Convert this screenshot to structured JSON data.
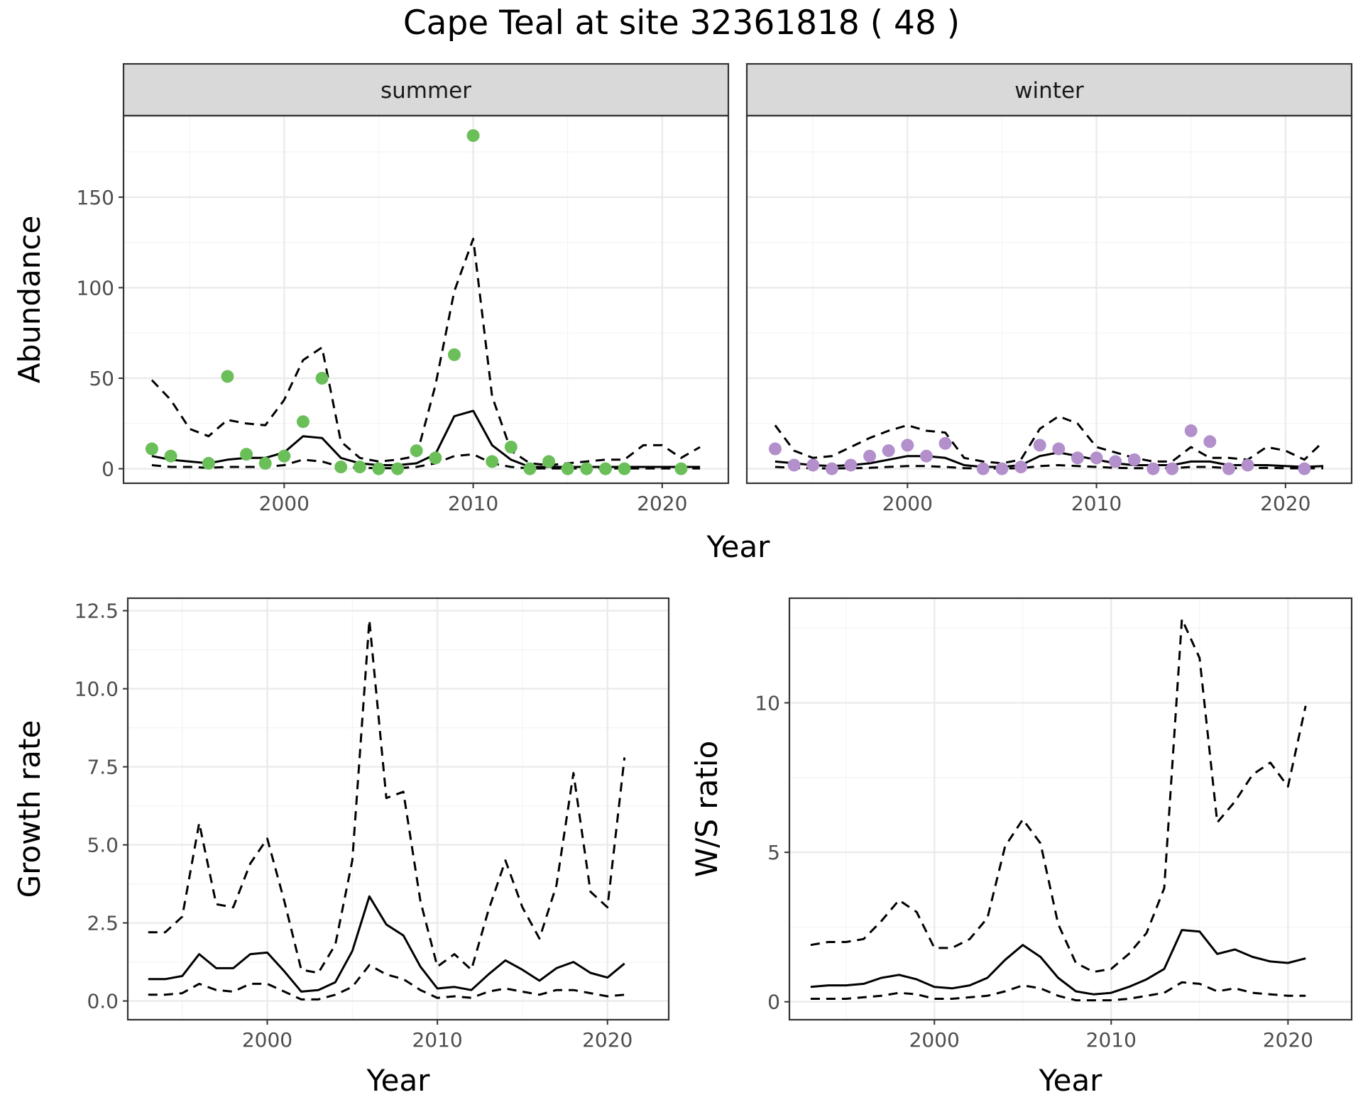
{
  "title": "Cape Teal at site 32361818 ( 48 )",
  "colors": {
    "summer": "#6BBF59",
    "winter": "#B390CC",
    "line": "#000000",
    "grid_major": "#EBEBEB",
    "grid_minor": "#F4F4F4",
    "strip_bg": "#D9D9D9"
  },
  "chart_data": [
    {
      "id": "abundance",
      "type": "line+scatter",
      "facets": [
        "summer",
        "winter"
      ],
      "xlabel": "Year",
      "ylabel": "Abundance",
      "xlim": [
        1991.5,
        2023.5
      ],
      "ylim": [
        -8,
        195
      ],
      "xticks": [
        2000,
        2010,
        2020
      ],
      "yticks": [
        0,
        50,
        100,
        150
      ],
      "panels": [
        {
          "facet": "summer",
          "years": [
            1993,
            1994,
            1995,
            1996,
            1997,
            1998,
            1999,
            2000,
            2001,
            2002,
            2003,
            2004,
            2005,
            2006,
            2007,
            2008,
            2009,
            2010,
            2011,
            2012,
            2013,
            2014,
            2015,
            2016,
            2017,
            2018,
            2019,
            2020,
            2021,
            2022
          ],
          "mean": [
            7,
            5,
            4,
            3,
            5,
            6,
            6,
            9,
            18,
            17,
            6,
            3,
            2,
            2,
            3,
            8,
            29,
            32,
            13,
            5,
            1,
            1,
            1,
            1,
            1,
            1,
            1,
            1,
            1,
            1
          ],
          "upper": [
            49,
            38,
            22,
            18,
            27,
            25,
            24,
            38,
            60,
            67,
            15,
            6,
            4,
            5,
            7,
            46,
            98,
            127,
            40,
            10,
            3,
            2,
            3,
            4,
            5,
            5,
            13,
            13,
            6,
            12
          ],
          "lower": [
            2,
            1,
            1,
            0.5,
            1,
            1,
            1,
            2,
            5,
            4,
            1,
            0.5,
            0.3,
            0.3,
            1,
            3,
            7,
            8,
            3,
            1,
            0.2,
            0.2,
            0.2,
            0.2,
            0.2,
            0.2,
            0.2,
            0.2,
            0.2,
            0.2
          ],
          "obs_years": [
            1993,
            1994,
            1996,
            1997,
            1998,
            1999,
            2000,
            2001,
            2002,
            2003,
            2004,
            2005,
            2006,
            2007,
            2008,
            2009,
            2010,
            2011,
            2012,
            2013,
            2014,
            2015,
            2016,
            2017,
            2018,
            2021
          ],
          "obs_values": [
            11,
            7,
            3,
            51,
            8,
            3,
            7,
            26,
            50,
            1,
            1,
            0,
            0,
            10,
            6,
            63,
            184,
            4,
            12,
            0,
            4,
            0,
            0,
            0,
            0,
            0
          ]
        },
        {
          "facet": "winter",
          "years": [
            1993,
            1994,
            1995,
            1996,
            1997,
            1998,
            1999,
            2000,
            2001,
            2002,
            2003,
            2004,
            2005,
            2006,
            2007,
            2008,
            2009,
            2010,
            2011,
            2012,
            2013,
            2014,
            2015,
            2016,
            2017,
            2018,
            2019,
            2020,
            2021,
            2022
          ],
          "mean": [
            4,
            3,
            2,
            1.5,
            2,
            3,
            5,
            7,
            7,
            6,
            2,
            1,
            1,
            2,
            7,
            9,
            7,
            5,
            3,
            2,
            2,
            2,
            4,
            4,
            2,
            2,
            2,
            1.5,
            1,
            1.5
          ],
          "upper": [
            24,
            10,
            6,
            7,
            12,
            17,
            21,
            24,
            21,
            20,
            6,
            4,
            3,
            5,
            22,
            29,
            25,
            12,
            9,
            6,
            4,
            4,
            12,
            6,
            6,
            5,
            12,
            10,
            5,
            15
          ],
          "lower": [
            1,
            0.5,
            0.3,
            0.2,
            0.3,
            0.5,
            1,
            1.5,
            1.5,
            1,
            0.3,
            0.2,
            0.2,
            0.3,
            1.5,
            2,
            1.5,
            1,
            0.5,
            0.3,
            0.3,
            0.3,
            1,
            1,
            0.3,
            0.3,
            0.5,
            0.3,
            0.2,
            0.3
          ],
          "obs_years": [
            1993,
            1994,
            1995,
            1996,
            1997,
            1998,
            1999,
            2000,
            2001,
            2002,
            2004,
            2005,
            2006,
            2007,
            2008,
            2009,
            2010,
            2011,
            2012,
            2013,
            2014,
            2015,
            2016,
            2017,
            2018,
            2021
          ],
          "obs_values": [
            11,
            2,
            2,
            0,
            2,
            7,
            10,
            13,
            7,
            14,
            0,
            0,
            1,
            13,
            11,
            6,
            6,
            4,
            5,
            0,
            0,
            21,
            15,
            0,
            2,
            0
          ]
        }
      ]
    },
    {
      "id": "growth",
      "type": "line",
      "xlabel": "Year",
      "ylabel": "Growth rate",
      "xlim": [
        1991.8,
        2023.6
      ],
      "ylim": [
        -0.6,
        12.9
      ],
      "xticks": [
        2000,
        2010,
        2020
      ],
      "yticks": [
        0.0,
        2.5,
        5.0,
        7.5,
        10.0,
        12.5
      ],
      "ytick_labels": [
        "0.0",
        "2.5",
        "5.0",
        "7.5",
        "10.0",
        "12.5"
      ],
      "years": [
        1993,
        1994,
        1995,
        1996,
        1997,
        1998,
        1999,
        2000,
        2001,
        2002,
        2003,
        2004,
        2005,
        2006,
        2007,
        2008,
        2009,
        2010,
        2011,
        2012,
        2013,
        2014,
        2015,
        2016,
        2017,
        2018,
        2019,
        2020,
        2021
      ],
      "mean": [
        0.7,
        0.7,
        0.8,
        1.5,
        1.05,
        1.05,
        1.5,
        1.55,
        0.95,
        0.3,
        0.35,
        0.6,
        1.6,
        3.35,
        2.45,
        2.1,
        1.1,
        0.4,
        0.45,
        0.35,
        0.85,
        1.3,
        1.0,
        0.65,
        1.05,
        1.25,
        0.9,
        0.75,
        1.2
      ],
      "upper": [
        2.2,
        2.2,
        2.7,
        5.7,
        3.1,
        3.0,
        4.4,
        5.2,
        3.2,
        1.0,
        0.9,
        1.8,
        4.5,
        12.2,
        6.5,
        6.7,
        3.2,
        1.1,
        1.5,
        1.0,
        2.9,
        4.5,
        3.0,
        2.0,
        3.7,
        7.3,
        3.5,
        3.0,
        7.8
      ],
      "lower": [
        0.2,
        0.2,
        0.25,
        0.55,
        0.35,
        0.3,
        0.55,
        0.55,
        0.3,
        0.05,
        0.05,
        0.2,
        0.45,
        1.15,
        0.85,
        0.7,
        0.35,
        0.1,
        0.15,
        0.1,
        0.3,
        0.4,
        0.3,
        0.2,
        0.35,
        0.35,
        0.25,
        0.15,
        0.2
      ]
    },
    {
      "id": "ws_ratio",
      "type": "line",
      "xlabel": "Year",
      "ylabel": "W/S ratio",
      "xlim": [
        1991.8,
        2023.6
      ],
      "ylim": [
        -0.6,
        13.5
      ],
      "xticks": [
        2000,
        2010,
        2020
      ],
      "yticks": [
        0,
        5,
        10
      ],
      "ytick_labels": [
        "0",
        "5",
        "10"
      ],
      "years": [
        1993,
        1994,
        1995,
        1996,
        1997,
        1998,
        1999,
        2000,
        2001,
        2002,
        2003,
        2004,
        2005,
        2006,
        2007,
        2008,
        2009,
        2010,
        2011,
        2012,
        2013,
        2014,
        2015,
        2016,
        2017,
        2018,
        2019,
        2020,
        2021
      ],
      "mean": [
        0.5,
        0.55,
        0.55,
        0.6,
        0.8,
        0.9,
        0.75,
        0.5,
        0.45,
        0.55,
        0.8,
        1.4,
        1.9,
        1.5,
        0.8,
        0.35,
        0.25,
        0.3,
        0.5,
        0.75,
        1.1,
        2.4,
        2.35,
        1.6,
        1.75,
        1.5,
        1.35,
        1.3,
        1.45
      ],
      "upper": [
        1.9,
        2.0,
        2.0,
        2.1,
        2.7,
        3.4,
        3.0,
        1.8,
        1.8,
        2.1,
        2.8,
        5.2,
        6.1,
        5.3,
        2.6,
        1.3,
        1.0,
        1.1,
        1.6,
        2.3,
        3.8,
        12.8,
        11.5,
        6.0,
        6.7,
        7.6,
        8.0,
        7.2,
        9.9
      ],
      "lower": [
        0.1,
        0.1,
        0.1,
        0.15,
        0.2,
        0.3,
        0.25,
        0.1,
        0.1,
        0.15,
        0.2,
        0.35,
        0.55,
        0.45,
        0.2,
        0.05,
        0.05,
        0.05,
        0.1,
        0.2,
        0.3,
        0.65,
        0.6,
        0.35,
        0.45,
        0.3,
        0.25,
        0.2,
        0.2
      ]
    }
  ]
}
